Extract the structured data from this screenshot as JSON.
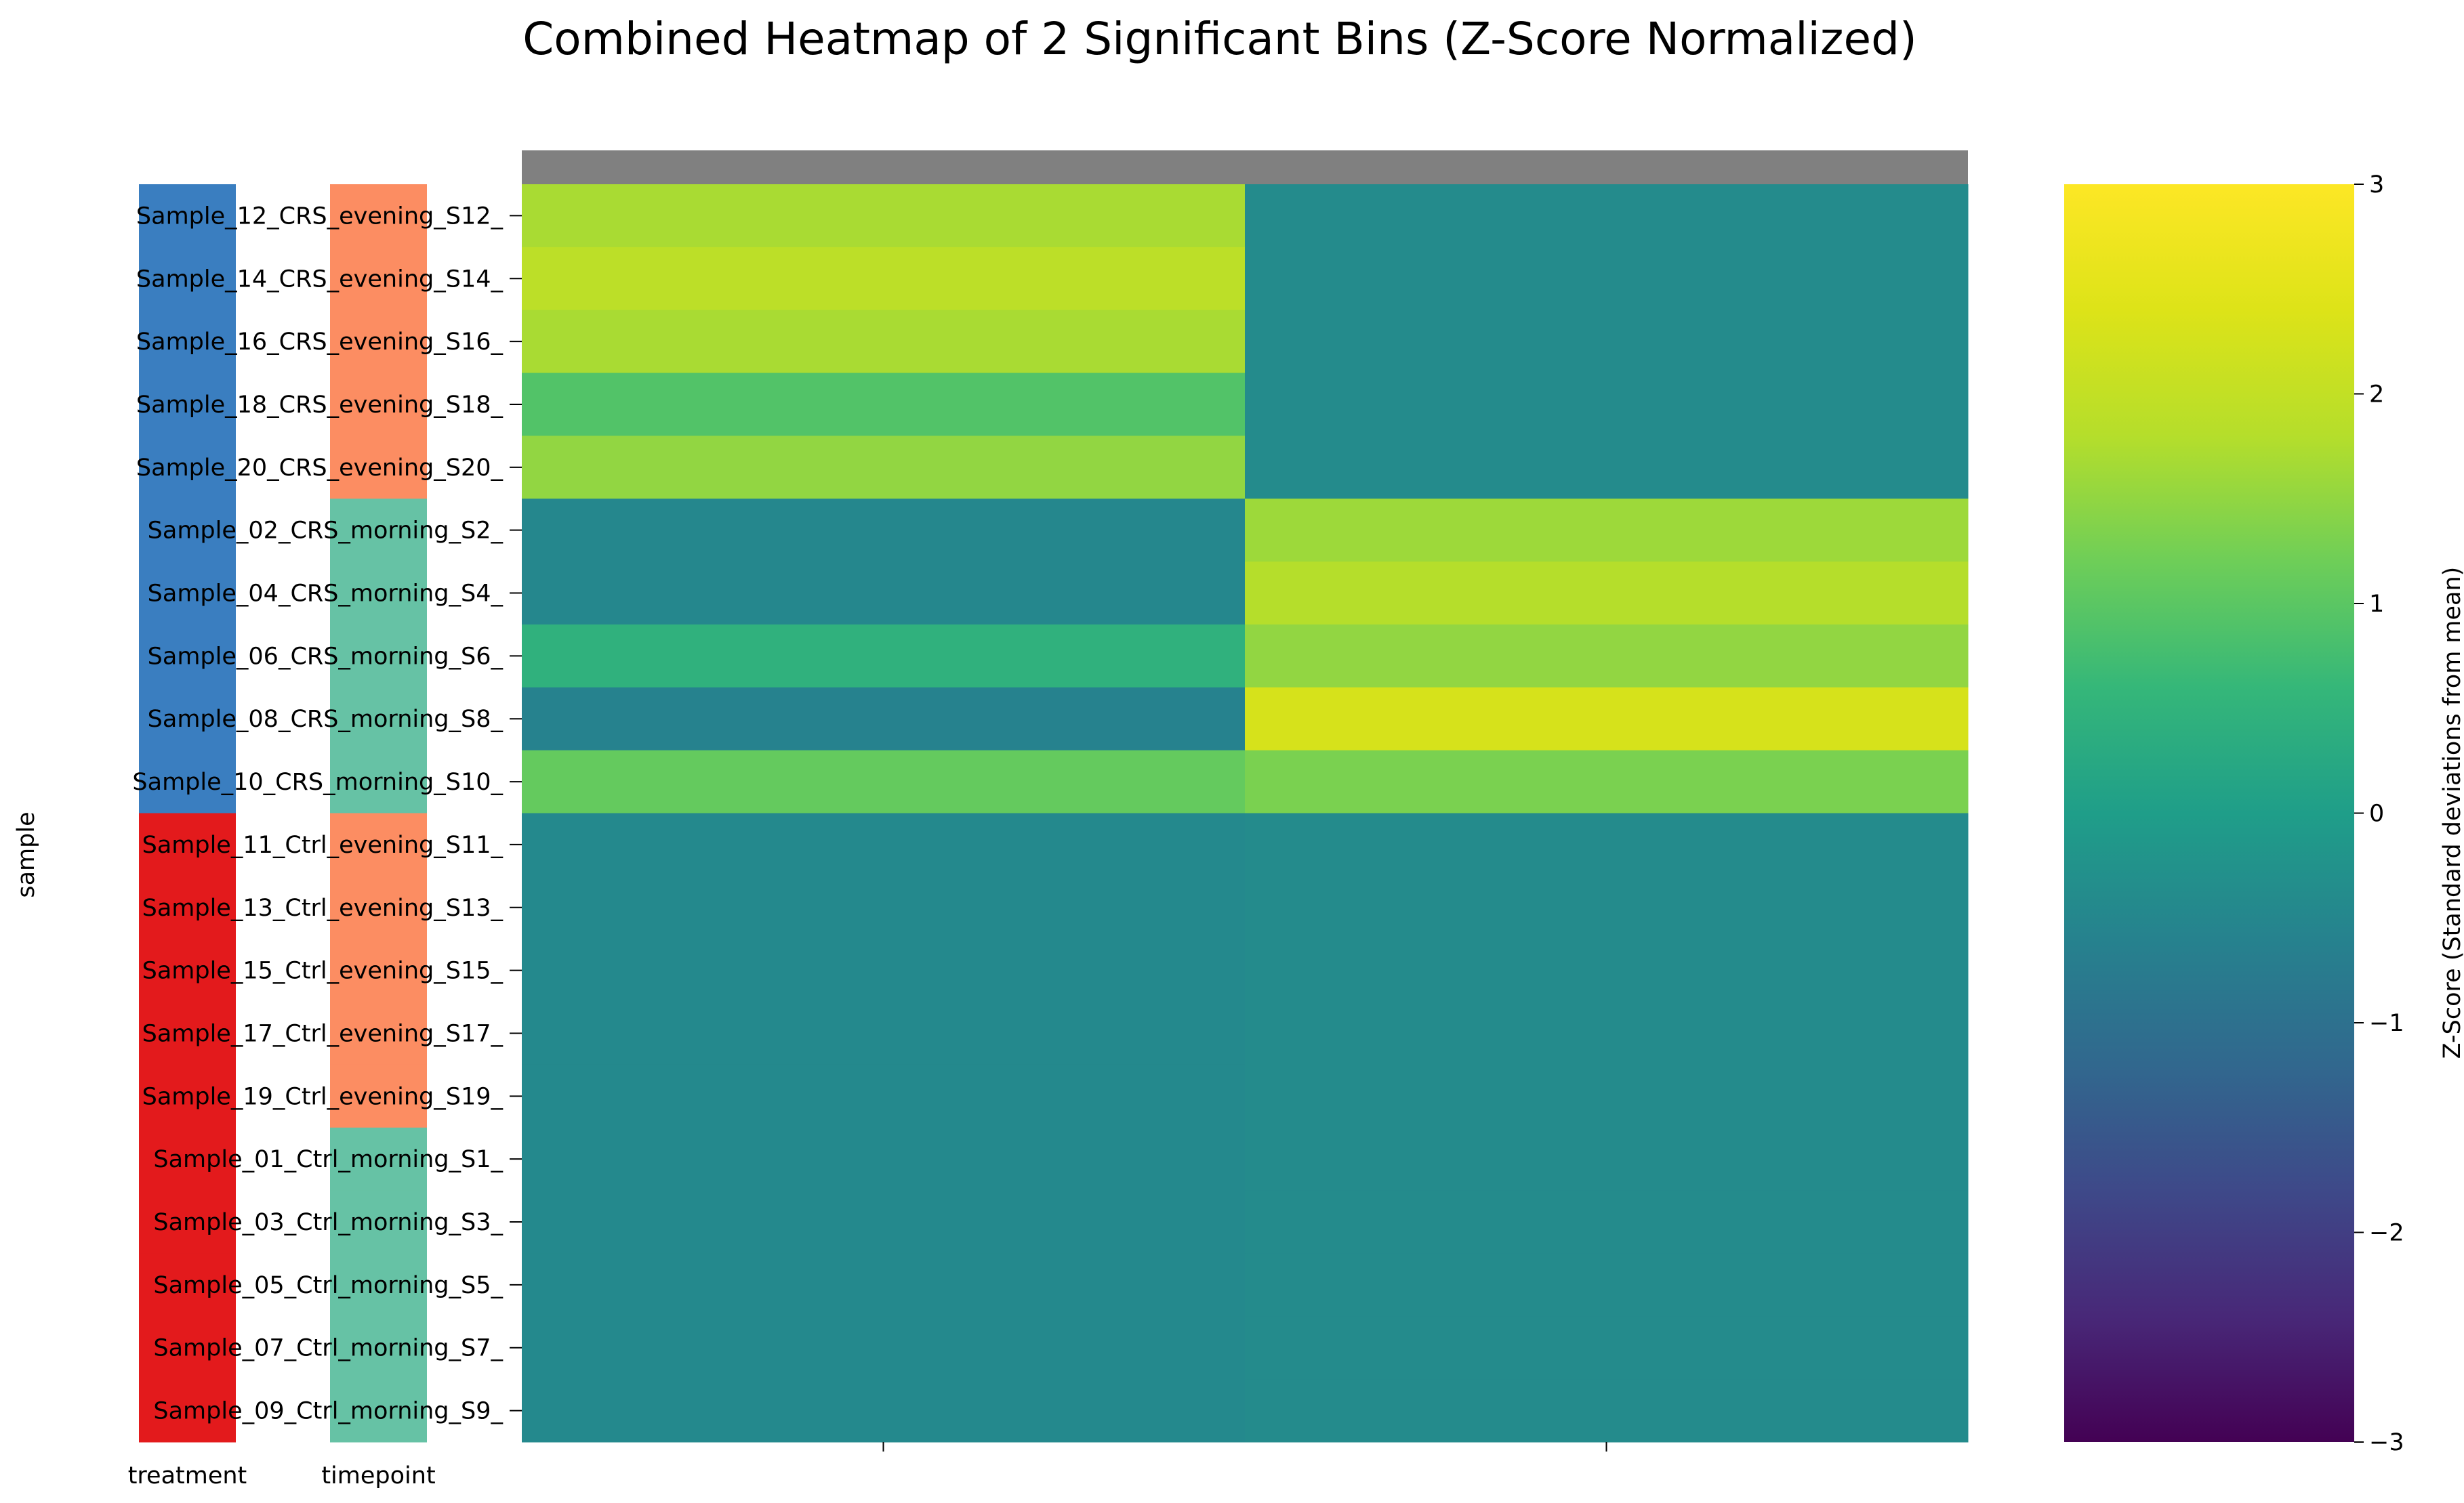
{
  "chart_data": {
    "type": "heatmap",
    "title": "Combined Heatmap of 2 Significant Bins (Z-Score Normalized)",
    "ylabel": "sample",
    "colorbar": {
      "label": "Z-Score (Standard deviations from mean)",
      "range": [
        -3,
        3
      ],
      "ticks": [
        "3",
        "2",
        "1",
        "0",
        "−1",
        "−2",
        "−3"
      ],
      "tick_values": [
        3,
        2,
        1,
        0,
        -1,
        -2,
        -3
      ],
      "colormap": "viridis"
    },
    "header_color": "#808080",
    "annotation_columns": [
      {
        "label": "treatment",
        "key": "treatment"
      },
      {
        "label": "timepoint",
        "key": "timepoint"
      }
    ],
    "annotation_colors": {
      "treatment": {
        "CRS": "#3a7ec0",
        "Ctrl": "#e31a1c"
      },
      "timepoint": {
        "evening": "#fc8d62",
        "morning": "#66c2a5"
      }
    },
    "rows": [
      {
        "label": "Sample_12_CRS_evening_S12_",
        "treatment": "CRS",
        "timepoint": "evening"
      },
      {
        "label": "Sample_14_CRS_evening_S14_",
        "treatment": "CRS",
        "timepoint": "evening"
      },
      {
        "label": "Sample_16_CRS_evening_S16_",
        "treatment": "CRS",
        "timepoint": "evening"
      },
      {
        "label": "Sample_18_CRS_evening_S18_",
        "treatment": "CRS",
        "timepoint": "evening"
      },
      {
        "label": "Sample_20_CRS_evening_S20_",
        "treatment": "CRS",
        "timepoint": "evening"
      },
      {
        "label": "Sample_02_CRS_morning_S2_",
        "treatment": "CRS",
        "timepoint": "morning"
      },
      {
        "label": "Sample_04_CRS_morning_S4_",
        "treatment": "CRS",
        "timepoint": "morning"
      },
      {
        "label": "Sample_06_CRS_morning_S6_",
        "treatment": "CRS",
        "timepoint": "morning"
      },
      {
        "label": "Sample_08_CRS_morning_S8_",
        "treatment": "CRS",
        "timepoint": "morning"
      },
      {
        "label": "Sample_10_CRS_morning_S10_",
        "treatment": "CRS",
        "timepoint": "morning"
      },
      {
        "label": "Sample_11_Ctrl_evening_S11_",
        "treatment": "Ctrl",
        "timepoint": "evening"
      },
      {
        "label": "Sample_13_Ctrl_evening_S13_",
        "treatment": "Ctrl",
        "timepoint": "evening"
      },
      {
        "label": "Sample_15_Ctrl_evening_S15_",
        "treatment": "Ctrl",
        "timepoint": "evening"
      },
      {
        "label": "Sample_17_Ctrl_evening_S17_",
        "treatment": "Ctrl",
        "timepoint": "evening"
      },
      {
        "label": "Sample_19_Ctrl_evening_S19_",
        "treatment": "Ctrl",
        "timepoint": "evening"
      },
      {
        "label": "Sample_01_Ctrl_morning_S1_",
        "treatment": "Ctrl",
        "timepoint": "morning"
      },
      {
        "label": "Sample_03_Ctrl_morning_S3_",
        "treatment": "Ctrl",
        "timepoint": "morning"
      },
      {
        "label": "Sample_05_Ctrl_morning_S5_",
        "treatment": "Ctrl",
        "timepoint": "morning"
      },
      {
        "label": "Sample_07_Ctrl_morning_S7_",
        "treatment": "Ctrl",
        "timepoint": "morning"
      },
      {
        "label": "Sample_09_Ctrl_morning_S9_",
        "treatment": "Ctrl",
        "timepoint": "morning"
      }
    ],
    "columns": [
      "",
      ""
    ],
    "values": [
      [
        1.7,
        -0.4
      ],
      [
        1.9,
        -0.4
      ],
      [
        1.7,
        -0.4
      ],
      [
        0.9,
        -0.4
      ],
      [
        1.5,
        -0.4
      ],
      [
        -0.5,
        1.6
      ],
      [
        -0.5,
        1.8
      ],
      [
        0.45,
        1.5
      ],
      [
        -0.6,
        2.3
      ],
      [
        1.1,
        1.3
      ],
      [
        -0.45,
        -0.4
      ],
      [
        -0.45,
        -0.4
      ],
      [
        -0.45,
        -0.4
      ],
      [
        -0.45,
        -0.4
      ],
      [
        -0.45,
        -0.4
      ],
      [
        -0.45,
        -0.4
      ],
      [
        -0.45,
        -0.4
      ],
      [
        -0.45,
        -0.4
      ],
      [
        -0.45,
        -0.4
      ],
      [
        -0.45,
        -0.4
      ]
    ]
  }
}
